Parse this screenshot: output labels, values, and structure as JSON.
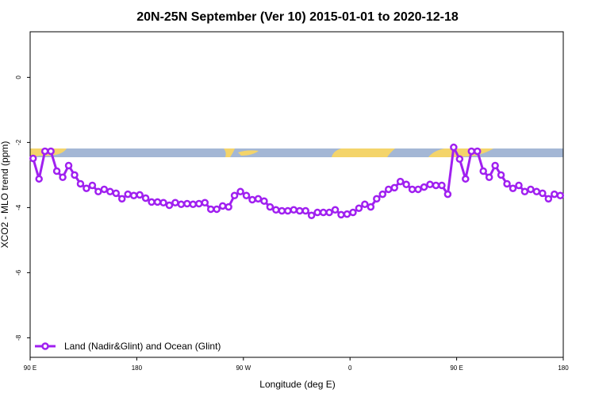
{
  "chart_data": {
    "type": "line",
    "title": "20N-25N September (Ver 10)   2015-01-01 to 2020-12-18",
    "x_label": "Longitude (deg E)",
    "y_label": "XCO2 - MLO trend (ppm)",
    "x": [
      92.5,
      97.5,
      102.5,
      107.5,
      112.5,
      117.5,
      122.5,
      127.5,
      132.5,
      137.5,
      142.5,
      147.5,
      152.5,
      157.5,
      162.5,
      167.5,
      172.5,
      177.5,
      182.5,
      187.5,
      192.5,
      197.5,
      202.5,
      207.5,
      212.5,
      217.5,
      222.5,
      227.5,
      232.5,
      237.5,
      242.5,
      247.5,
      252.5,
      257.5,
      262.5,
      267.5,
      272.5,
      277.5,
      282.5,
      287.5,
      292.5,
      297.5,
      302.5,
      307.5,
      312.5,
      317.5,
      322.5,
      327.5,
      332.5,
      337.5,
      342.5,
      347.5,
      352.5,
      357.5,
      362.5,
      367.5,
      372.5,
      377.5,
      382.5,
      387.5,
      392.5,
      397.5,
      402.5,
      407.5,
      412.5,
      417.5,
      422.5,
      427.5,
      432.5,
      437.5,
      442.5,
      447.5,
      452.5,
      457.5,
      462.5,
      467.5,
      472.5,
      477.5,
      482.5,
      487.5,
      492.5,
      497.5,
      502.5,
      507.5,
      512.5,
      517.5,
      522.5,
      527.5,
      532.5,
      537.5
    ],
    "series": [
      {
        "name": "Land (Nadir&Glint) and Ocean (Glint)",
        "color": "#a020f0",
        "values": [
          -2.49,
          -3.12,
          -2.27,
          -2.27,
          -2.88,
          -3.07,
          -2.71,
          -3.0,
          -3.27,
          -3.41,
          -3.32,
          -3.51,
          -3.44,
          -3.51,
          -3.56,
          -3.73,
          -3.59,
          -3.63,
          -3.61,
          -3.71,
          -3.83,
          -3.83,
          -3.85,
          -3.93,
          -3.85,
          -3.9,
          -3.88,
          -3.9,
          -3.88,
          -3.85,
          -4.05,
          -4.05,
          -3.95,
          -3.98,
          -3.63,
          -3.51,
          -3.63,
          -3.76,
          -3.73,
          -3.8,
          -3.98,
          -4.07,
          -4.1,
          -4.1,
          -4.07,
          -4.1,
          -4.1,
          -4.24,
          -4.15,
          -4.15,
          -4.15,
          -4.07,
          -4.22,
          -4.2,
          -4.15,
          -4.02,
          -3.9,
          -3.98,
          -3.73,
          -3.59,
          -3.44,
          -3.39,
          -3.2,
          -3.29,
          -3.44,
          -3.44,
          -3.37,
          -3.29,
          -3.32,
          -3.32,
          -3.59,
          -2.15,
          -2.51,
          -3.12,
          -2.27,
          -2.27,
          -2.88,
          -3.07,
          -2.71,
          -3.0,
          -3.27,
          -3.41,
          -3.32,
          -3.51,
          -3.44,
          -3.51,
          -3.56,
          -3.73,
          -3.59,
          -3.63
        ]
      }
    ],
    "xlim": [
      90,
      540
    ],
    "xticks": [
      {
        "value": 90,
        "label": "90 E"
      },
      180,
      {
        "value": 270,
        "label": "90 W"
      },
      {
        "value": 360,
        "label": "0"
      },
      {
        "value": 450,
        "label": "90 E"
      },
      {
        "value": 540,
        "label": "180"
      }
    ],
    "ylim": [
      -8.6,
      1.4
    ],
    "yticks": [
      0,
      -2,
      -4,
      -6,
      -8
    ],
    "legend": "bottom-left"
  }
}
